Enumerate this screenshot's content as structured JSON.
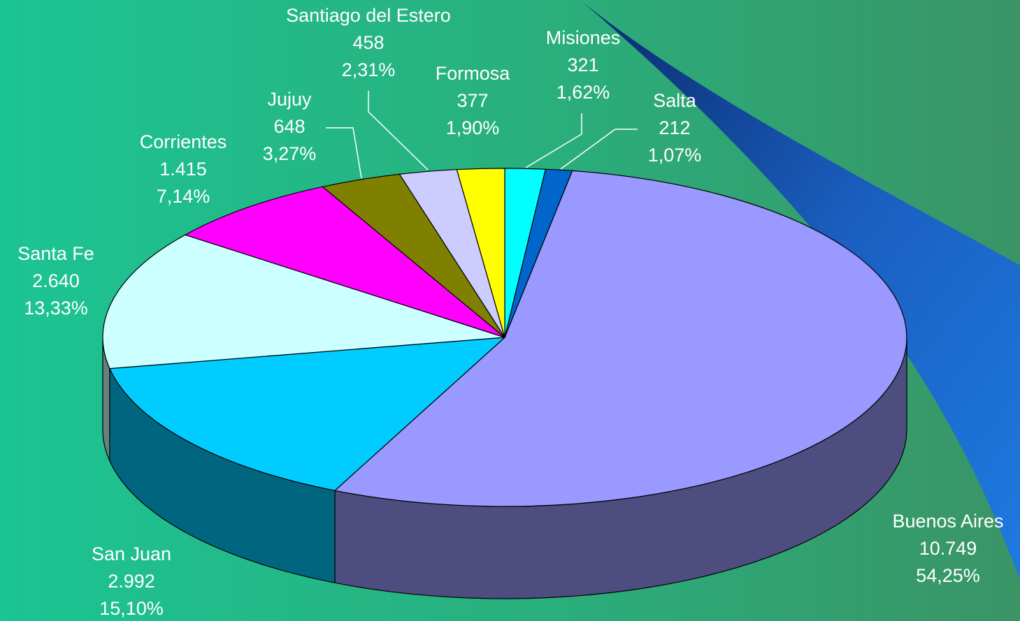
{
  "chart_data": {
    "type": "pie3d",
    "categories": [
      "Misiones",
      "Salta",
      "Buenos Aires",
      "San Juan",
      "Santa Fe",
      "Corrientes",
      "Jujuy",
      "Santiago del Estero",
      "Formosa"
    ],
    "values": [
      321,
      212,
      10749,
      2992,
      2640,
      1415,
      648,
      458,
      377
    ],
    "value_labels": [
      "321",
      "212",
      "10.749",
      "2.992",
      "2.640",
      "1.415",
      "648",
      "458",
      "377"
    ],
    "percentages": [
      1.62,
      1.07,
      54.25,
      15.1,
      13.33,
      7.14,
      3.27,
      2.31,
      1.9
    ],
    "percentage_labels": [
      "1,62%",
      "1,07%",
      "54,25%",
      "15,10%",
      "13,33%",
      "7,14%",
      "3,27%",
      "2,31%",
      "1,90%"
    ],
    "colors": [
      "#00ffff",
      "#0066cc",
      "#9999ff",
      "#00ccff",
      "#ccffff",
      "#ff00ff",
      "#808000",
      "#ccccff",
      "#ffff00"
    ]
  }
}
